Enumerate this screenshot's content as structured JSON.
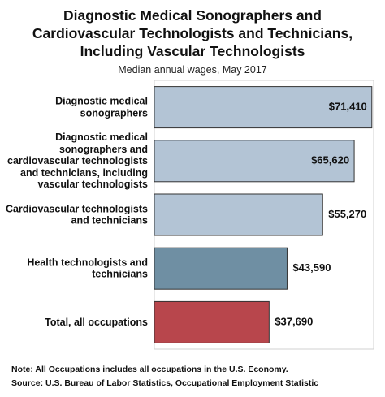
{
  "chart_data": {
    "type": "bar",
    "orientation": "horizontal",
    "title": "Diagnostic Medical Sonographers and Cardiovascular Technologists and Technicians, Including Vascular Technologists",
    "subtitle": "Median annual wages, May 2017",
    "categories": [
      "Diagnostic medical sonographers",
      "Diagnostic medical sonographers and cardiovascular technologists and technicians, including vascular technologists",
      "Cardiovascular technologists and technicians",
      "Health technologists and technicians",
      "Total, all occupations"
    ],
    "values": [
      71410,
      65620,
      55270,
      43590,
      37690
    ],
    "value_labels": [
      "$71,410",
      "$65,620",
      "$55,270",
      "$43,590",
      "$37,690"
    ],
    "colors": [
      "#b3c4d5",
      "#b3c4d5",
      "#b3c4d5",
      "#6f8fa3",
      "#b8464c"
    ],
    "xlim": [
      0,
      72000
    ],
    "note": "Note: All Occupations includes all occupations in the U.S. Economy.",
    "source": "Source: U.S. Bureau of Labor Statistics, Occupational Employment Statistic"
  }
}
